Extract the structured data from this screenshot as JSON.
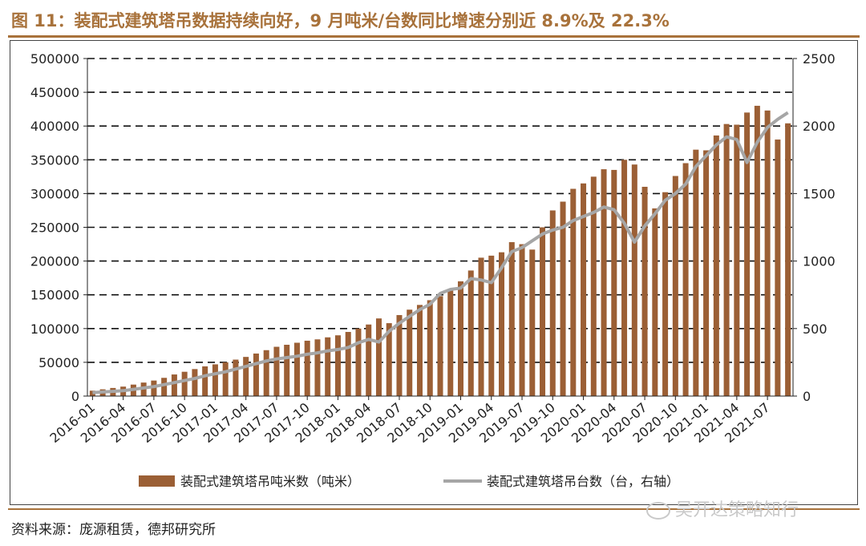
{
  "header": {
    "title": "图 11：装配式建筑塔吊数据持续向好，9 月吨米/台数同比增速分别近 8.9%及 22.3%"
  },
  "footer": {
    "source": "资料来源：庞源租赁，德邦研究所",
    "watermark": "吴开达策略知行"
  },
  "colors": {
    "bar": "#9b5f35",
    "line": "#a6a6a6",
    "accent": "#a8723b"
  },
  "chart_data": {
    "type": "bar",
    "title": "",
    "xlabel": "",
    "ylabel": "",
    "ylim": [
      0,
      500000
    ],
    "y2lim": [
      0,
      2500
    ],
    "yticks": [
      "0",
      "50000",
      "100000",
      "150000",
      "200000",
      "250000",
      "300000",
      "350000",
      "400000",
      "450000",
      "500000"
    ],
    "y2ticks": [
      "0",
      "500",
      "1000",
      "1500",
      "2000",
      "2500"
    ],
    "xtick_labels": [
      "2016-01",
      "2016-04",
      "2016-07",
      "2016-10",
      "2017-01",
      "2017-04",
      "2017-07",
      "2017-10",
      "2018-01",
      "2018-04",
      "2018-07",
      "2018-10",
      "2019-01",
      "2019-04",
      "2019-07",
      "2019-10",
      "2020-01",
      "2020-04",
      "2020-07",
      "2020-10",
      "2021-01",
      "2021-04",
      "2021-07"
    ],
    "categories": [
      "2016-01",
      "2016-02",
      "2016-03",
      "2016-04",
      "2016-05",
      "2016-06",
      "2016-07",
      "2016-08",
      "2016-09",
      "2016-10",
      "2016-11",
      "2016-12",
      "2017-01",
      "2017-02",
      "2017-03",
      "2017-04",
      "2017-05",
      "2017-06",
      "2017-07",
      "2017-08",
      "2017-09",
      "2017-10",
      "2017-11",
      "2017-12",
      "2018-01",
      "2018-02",
      "2018-03",
      "2018-04",
      "2018-05",
      "2018-06",
      "2018-07",
      "2018-08",
      "2018-09",
      "2018-10",
      "2018-11",
      "2018-12",
      "2019-01",
      "2019-02",
      "2019-03",
      "2019-04",
      "2019-05",
      "2019-06",
      "2019-07",
      "2019-08",
      "2019-09",
      "2019-10",
      "2019-11",
      "2019-12",
      "2020-01",
      "2020-02",
      "2020-03",
      "2020-04",
      "2020-05",
      "2020-06",
      "2020-07",
      "2020-08",
      "2020-09",
      "2020-10",
      "2020-11",
      "2020-12",
      "2021-01",
      "2021-02",
      "2021-03",
      "2021-04",
      "2021-05",
      "2021-06",
      "2021-07",
      "2021-08",
      "2021-09"
    ],
    "series": [
      {
        "name": "装配式建筑塔吊吨米数（吨米）",
        "axis": "left",
        "type": "bar",
        "values": [
          8000,
          10000,
          12000,
          14000,
          17000,
          20000,
          23000,
          27000,
          32000,
          36000,
          40000,
          44000,
          47000,
          50000,
          54000,
          58000,
          63000,
          68000,
          73000,
          76000,
          79000,
          82000,
          84000,
          87000,
          90000,
          95000,
          100000,
          106000,
          115000,
          108000,
          120000,
          128000,
          135000,
          142000,
          148000,
          157000,
          170000,
          186000,
          205000,
          208000,
          213000,
          228000,
          225000,
          217000,
          250000,
          275000,
          288000,
          307000,
          315000,
          325000,
          336000,
          335000,
          350000,
          343000,
          310000,
          278000,
          302000,
          326000,
          345000,
          365000,
          364000,
          386000,
          403000,
          402000,
          420000,
          430000,
          423000,
          380000,
          404000
        ]
      },
      {
        "name": "装配式建筑塔吊台数（台，右轴）",
        "axis": "right",
        "type": "line",
        "values": [
          25,
          30,
          35,
          40,
          50,
          60,
          70,
          85,
          100,
          115,
          130,
          150,
          165,
          180,
          200,
          220,
          240,
          260,
          275,
          285,
          295,
          310,
          320,
          335,
          345,
          360,
          395,
          420,
          400,
          480,
          540,
          590,
          640,
          680,
          760,
          790,
          800,
          870,
          860,
          840,
          950,
          1070,
          1100,
          1150,
          1200,
          1230,
          1250,
          1300,
          1330,
          1360,
          1400,
          1380,
          1280,
          1140,
          1260,
          1350,
          1450,
          1500,
          1570,
          1700,
          1780,
          1860,
          1920,
          1900,
          1730,
          1880,
          1990,
          2050,
          2100
        ]
      }
    ],
    "legend": [
      "装配式建筑塔吊吨米数（吨米）",
      "装配式建筑塔吊台数（台，右轴）"
    ],
    "legend_position": "bottom",
    "grid": "horizontal-dashed"
  }
}
